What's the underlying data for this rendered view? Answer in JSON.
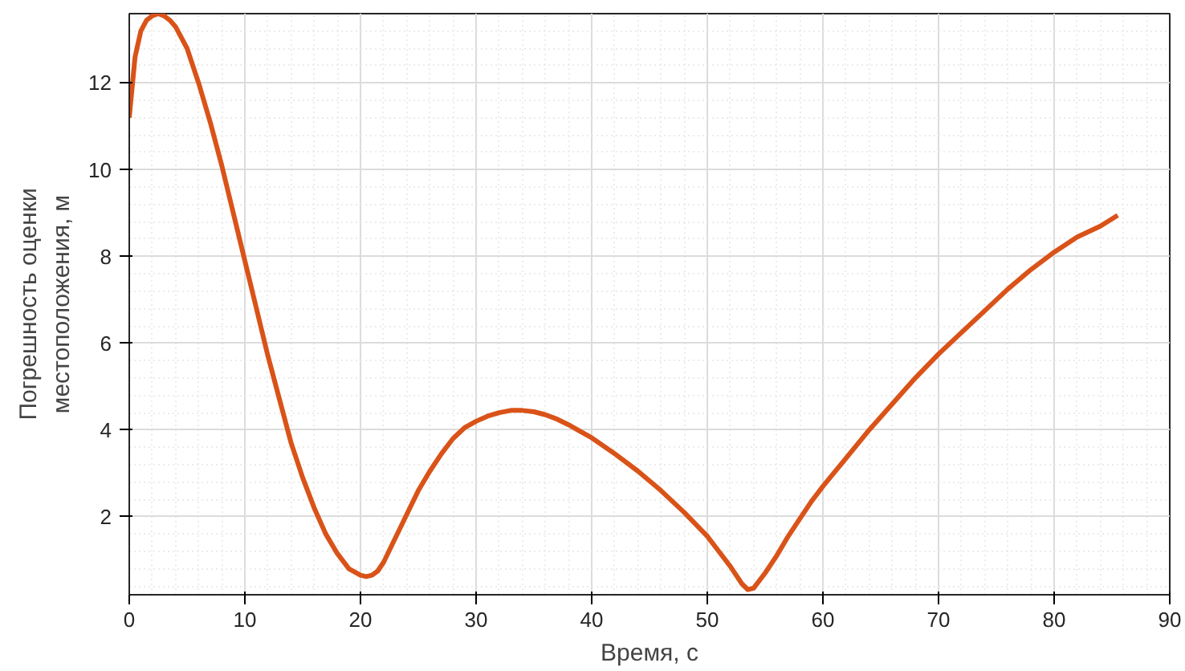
{
  "chart_data": {
    "type": "line",
    "xlabel": "Время, с",
    "ylabel": "Погрешность оценки\nместоположения, м",
    "x": [
      0,
      0.5,
      1,
      1.5,
      2,
      2.5,
      3,
      3.5,
      4,
      5,
      6,
      7,
      8,
      9,
      10,
      11,
      12,
      13,
      14,
      15,
      16,
      17,
      18,
      19,
      20,
      20.5,
      21,
      21.5,
      22,
      23,
      24,
      25,
      26,
      27,
      28,
      29,
      30,
      31,
      32,
      33,
      34,
      35,
      36,
      37,
      38,
      39,
      40,
      42,
      44,
      46,
      48,
      50,
      51,
      52,
      53,
      53.5,
      54,
      55,
      56,
      57,
      58,
      59,
      60,
      62,
      64,
      66,
      68,
      70,
      72,
      74,
      76,
      78,
      80,
      82,
      84,
      85.5
    ],
    "series": [
      {
        "color": "#d95319",
        "values": [
          11.2,
          12.6,
          13.2,
          13.45,
          13.55,
          13.6,
          13.55,
          13.45,
          13.3,
          12.8,
          12.0,
          11.1,
          10.1,
          9.0,
          7.9,
          6.8,
          5.7,
          4.7,
          3.7,
          2.9,
          2.2,
          1.6,
          1.15,
          0.8,
          0.65,
          0.62,
          0.65,
          0.75,
          0.95,
          1.5,
          2.05,
          2.6,
          3.05,
          3.45,
          3.8,
          4.05,
          4.2,
          4.32,
          4.4,
          4.45,
          4.45,
          4.42,
          4.35,
          4.25,
          4.12,
          3.97,
          3.82,
          3.45,
          3.05,
          2.6,
          2.1,
          1.55,
          1.2,
          0.85,
          0.45,
          0.32,
          0.35,
          0.7,
          1.1,
          1.55,
          1.95,
          2.35,
          2.7,
          3.35,
          4.0,
          4.6,
          5.2,
          5.75,
          6.25,
          6.75,
          7.25,
          7.7,
          8.1,
          8.45,
          8.7,
          8.95
        ]
      }
    ],
    "xlim": [
      0,
      90
    ],
    "ylim": [
      0.2,
      13.6
    ],
    "xticks": [
      0,
      10,
      20,
      30,
      40,
      50,
      60,
      70,
      80,
      90
    ],
    "yticks": [
      2,
      4,
      6,
      8,
      10,
      12
    ],
    "grid": true,
    "marker": "none",
    "line_style": "solid"
  }
}
